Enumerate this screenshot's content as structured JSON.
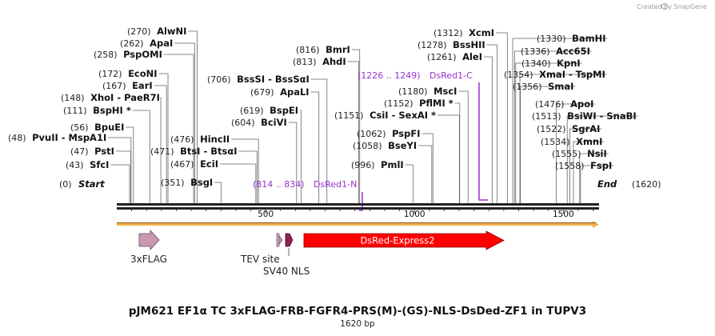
{
  "credit": "Created by SnapGene",
  "title": "pJM621 EF1α TC 3xFLAG-FRB-FGFR4-PRS(M)-(GS)-NLS-DsDed-ZF1 in TUPV3",
  "length_label": "1620 bp",
  "sequence": {
    "start_label": "Start",
    "end_label": "End",
    "start_pos": "(0)",
    "end_pos": "(1620)"
  },
  "ticks": [
    {
      "value": 500,
      "label": "500"
    },
    {
      "value": 1000,
      "label": "1000"
    },
    {
      "value": 1500,
      "label": "1500"
    }
  ],
  "sites": [
    {
      "name": "SfcI",
      "pos": "(43)"
    },
    {
      "name": "PstI",
      "pos": "(47)"
    },
    {
      "name": "PvuII - MspA1I",
      "pos": "(48)"
    },
    {
      "name": "BpuEI",
      "pos": "(56)"
    },
    {
      "name": "BspHI *",
      "pos": "(111)"
    },
    {
      "name": "XhoI - PaeR7I",
      "pos": "(148)"
    },
    {
      "name": "EarI",
      "pos": "(167)"
    },
    {
      "name": "EcoNI",
      "pos": "(172)"
    },
    {
      "name": "PspOMI",
      "pos": "(258)"
    },
    {
      "name": "ApaI",
      "pos": "(262)"
    },
    {
      "name": "AlwNI",
      "pos": "(270)"
    },
    {
      "name": "BsgI",
      "pos": "(351)"
    },
    {
      "name": "EciI",
      "pos": "(467)"
    },
    {
      "name": "BtsI - BtsαI",
      "pos": "(471)"
    },
    {
      "name": "HincII",
      "pos": "(476)"
    },
    {
      "name": "BciVI",
      "pos": "(604)"
    },
    {
      "name": "BspEI",
      "pos": "(619)"
    },
    {
      "name": "ApaLI",
      "pos": "(679)"
    },
    {
      "name": "BssSI - BssSαI",
      "pos": "(706)"
    },
    {
      "name": "AhdI",
      "pos": "(813)"
    },
    {
      "name": "BmrI",
      "pos": "(816)"
    },
    {
      "name": "PmlI",
      "pos": "(996)"
    },
    {
      "name": "BseYI",
      "pos": "(1058)"
    },
    {
      "name": "PspFI",
      "pos": "(1062)"
    },
    {
      "name": "CsiI - SexAI *",
      "pos": "(1151)"
    },
    {
      "name": "PflMI *",
      "pos": "(1152)"
    },
    {
      "name": "MscI",
      "pos": "(1180)"
    },
    {
      "name": "AleI",
      "pos": "(1261)"
    },
    {
      "name": "BssHII",
      "pos": "(1278)"
    },
    {
      "name": "XcmI",
      "pos": "(1312)"
    },
    {
      "name": "BamHI",
      "pos": "(1330)"
    },
    {
      "name": "Acc65I",
      "pos": "(1336)"
    },
    {
      "name": "KpnI",
      "pos": "(1340)"
    },
    {
      "name": "XmaI - TspMI",
      "pos": "(1354)"
    },
    {
      "name": "SmaI",
      "pos": "(1356)"
    },
    {
      "name": "ApoI",
      "pos": "(1476)"
    },
    {
      "name": "BsiWI - SnaBI",
      "pos": "(1513)"
    },
    {
      "name": "SgrAI",
      "pos": "(1522)"
    },
    {
      "name": "XmnI",
      "pos": "(1534)"
    },
    {
      "name": "NsiI",
      "pos": "(1555)"
    },
    {
      "name": "FspI",
      "pos": "(1558)"
    }
  ],
  "primers": [
    {
      "name": "DsRed1-N",
      "range": "(814 .. 834)"
    },
    {
      "name": "DsRed1-C",
      "range": "(1226 .. 1249)"
    }
  ],
  "features": [
    {
      "name": "3xFLAG",
      "color": "#c999b4"
    },
    {
      "name": "TEV site",
      "color": "#c999b4"
    },
    {
      "name": "SV40 NLS",
      "color": "#8b2252"
    },
    {
      "name": "DsRed-Express2",
      "color": "#ff0000"
    }
  ],
  "colors": {
    "primer": "#9b30d0",
    "orf": "#f0b04a",
    "backbone": "#222222"
  }
}
